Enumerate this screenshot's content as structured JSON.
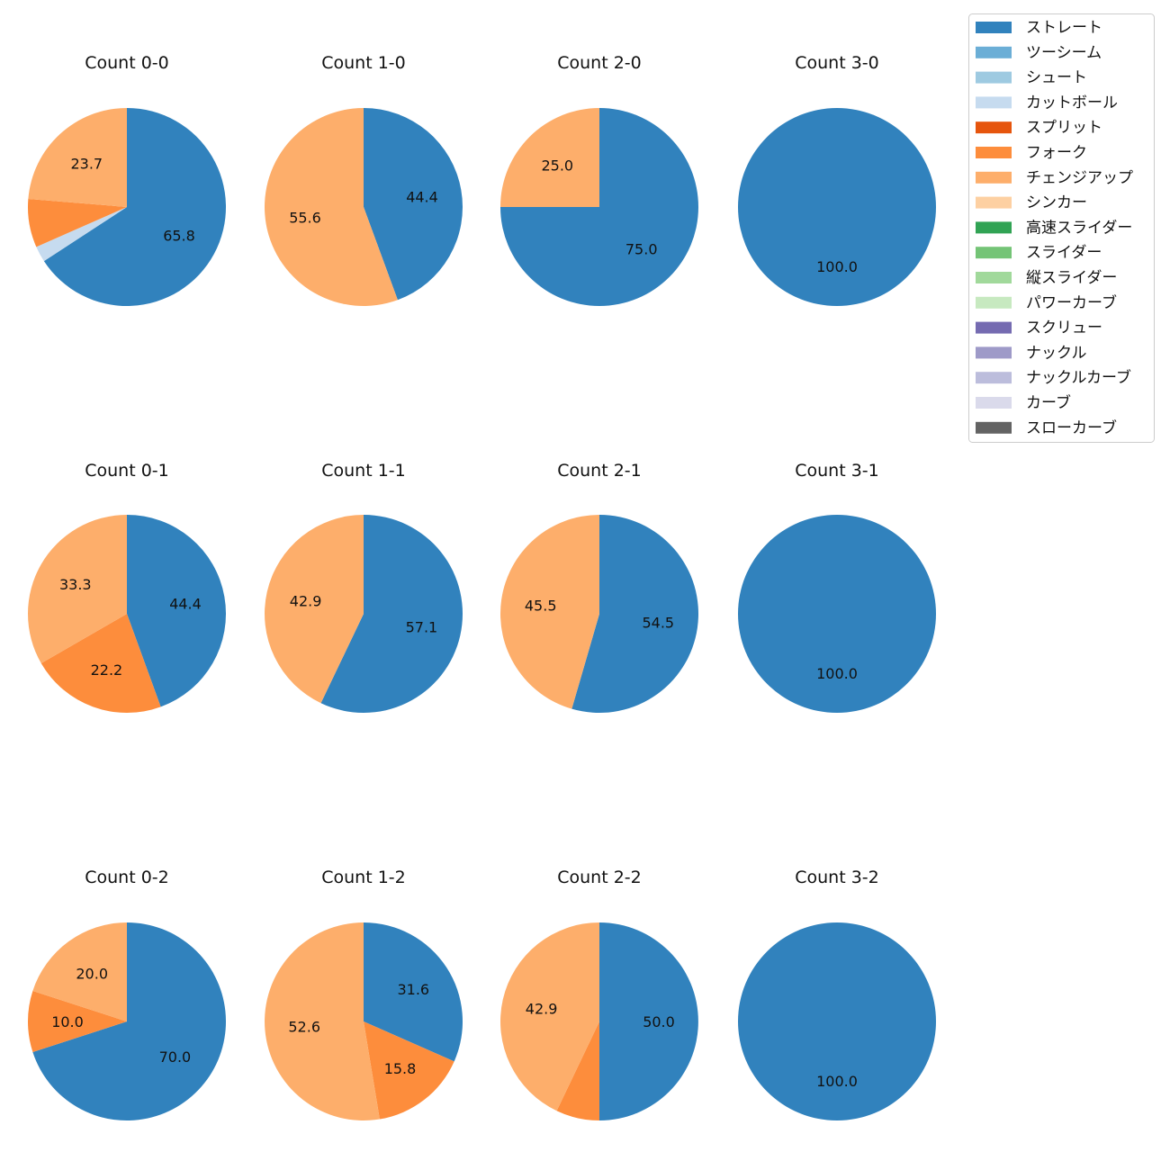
{
  "chart_data": {
    "type": "pie",
    "title": "",
    "label_format": "percent, one decimal; labels drawn for slices of 10% or more",
    "legend_position": "top-right",
    "legend": [
      {
        "name": "ストレート",
        "color": "#3182bd"
      },
      {
        "name": "ツーシーム",
        "color": "#6baed6"
      },
      {
        "name": "シュート",
        "color": "#9ecae1"
      },
      {
        "name": "カットボール",
        "color": "#c6dbef"
      },
      {
        "name": "スプリット",
        "color": "#e6550d"
      },
      {
        "name": "フォーク",
        "color": "#fd8d3c"
      },
      {
        "name": "チェンジアップ",
        "color": "#fdae6b"
      },
      {
        "name": "シンカー",
        "color": "#fdd0a2"
      },
      {
        "name": "高速スライダー",
        "color": "#31a354"
      },
      {
        "name": "スライダー",
        "color": "#74c476"
      },
      {
        "name": "縦スライダー",
        "color": "#a1d99b"
      },
      {
        "name": "パワーカーブ",
        "color": "#c7e9c0"
      },
      {
        "name": "スクリュー",
        "color": "#756bb1"
      },
      {
        "name": "ナックル",
        "color": "#9e9ac8"
      },
      {
        "name": "ナックルカーブ",
        "color": "#bcbddc"
      },
      {
        "name": "カーブ",
        "color": "#dadaeb"
      },
      {
        "name": "スローカーブ",
        "color": "#636363"
      }
    ],
    "pies": [
      {
        "title": "Count 0-0",
        "slices": [
          {
            "pitch": "ストレート",
            "value": 65.8,
            "label": "65.8"
          },
          {
            "pitch": "カットボール",
            "value": 2.6,
            "label": ""
          },
          {
            "pitch": "フォーク",
            "value": 7.9,
            "label": ""
          },
          {
            "pitch": "チェンジアップ",
            "value": 23.7,
            "label": "23.7"
          }
        ]
      },
      {
        "title": "Count 1-0",
        "slices": [
          {
            "pitch": "ストレート",
            "value": 44.4,
            "label": "44.4"
          },
          {
            "pitch": "チェンジアップ",
            "value": 55.6,
            "label": "55.6"
          }
        ]
      },
      {
        "title": "Count 2-0",
        "slices": [
          {
            "pitch": "ストレート",
            "value": 75.0,
            "label": "75.0"
          },
          {
            "pitch": "チェンジアップ",
            "value": 25.0,
            "label": "25.0"
          }
        ]
      },
      {
        "title": "Count 3-0",
        "slices": [
          {
            "pitch": "ストレート",
            "value": 100.0,
            "label": "100.0"
          }
        ]
      },
      {
        "title": "Count 0-1",
        "slices": [
          {
            "pitch": "ストレート",
            "value": 44.4,
            "label": "44.4"
          },
          {
            "pitch": "フォーク",
            "value": 22.2,
            "label": "22.2"
          },
          {
            "pitch": "チェンジアップ",
            "value": 33.3,
            "label": "33.3"
          }
        ]
      },
      {
        "title": "Count 1-1",
        "slices": [
          {
            "pitch": "ストレート",
            "value": 57.1,
            "label": "57.1"
          },
          {
            "pitch": "チェンジアップ",
            "value": 42.9,
            "label": "42.9"
          }
        ]
      },
      {
        "title": "Count 2-1",
        "slices": [
          {
            "pitch": "ストレート",
            "value": 54.5,
            "label": "54.5"
          },
          {
            "pitch": "チェンジアップ",
            "value": 45.5,
            "label": "45.5"
          }
        ]
      },
      {
        "title": "Count 3-1",
        "slices": [
          {
            "pitch": "ストレート",
            "value": 100.0,
            "label": "100.0"
          }
        ]
      },
      {
        "title": "Count 0-2",
        "slices": [
          {
            "pitch": "ストレート",
            "value": 70.0,
            "label": "70.0"
          },
          {
            "pitch": "フォーク",
            "value": 10.0,
            "label": "10.0"
          },
          {
            "pitch": "チェンジアップ",
            "value": 20.0,
            "label": "20.0"
          }
        ]
      },
      {
        "title": "Count 1-2",
        "slices": [
          {
            "pitch": "ストレート",
            "value": 31.6,
            "label": "31.6"
          },
          {
            "pitch": "フォーク",
            "value": 15.8,
            "label": "15.8"
          },
          {
            "pitch": "チェンジアップ",
            "value": 52.6,
            "label": "52.6"
          }
        ]
      },
      {
        "title": "Count 2-2",
        "slices": [
          {
            "pitch": "ストレート",
            "value": 50.0,
            "label": "50.0"
          },
          {
            "pitch": "フォーク",
            "value": 7.1,
            "label": ""
          },
          {
            "pitch": "チェンジアップ",
            "value": 42.9,
            "label": "42.9"
          }
        ]
      },
      {
        "title": "Count 3-2",
        "slices": [
          {
            "pitch": "ストレート",
            "value": 100.0,
            "label": "100.0"
          }
        ]
      }
    ]
  }
}
